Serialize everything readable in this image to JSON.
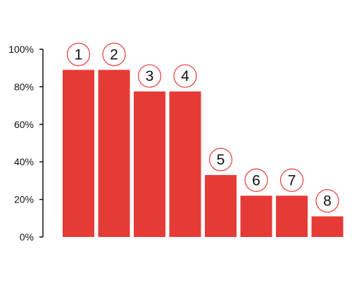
{
  "chart_data": {
    "type": "bar",
    "title": "",
    "xlabel": "",
    "ylabel": "",
    "ylim": [
      0,
      100
    ],
    "y_ticks": [
      "0%",
      "20%",
      "40%",
      "60%",
      "80%",
      "100%"
    ],
    "y_tick_values": [
      0,
      20,
      40,
      60,
      80,
      100
    ],
    "categories": [
      "1",
      "2",
      "3",
      "4",
      "5",
      "6",
      "7",
      "8"
    ],
    "values": [
      89,
      89,
      77.5,
      77.5,
      33,
      22,
      22,
      11
    ],
    "grid": false,
    "legend": "none"
  },
  "colors": {
    "bar": "#e63a37",
    "label_circle_stroke": "#e63a37",
    "axis": "#111111"
  }
}
